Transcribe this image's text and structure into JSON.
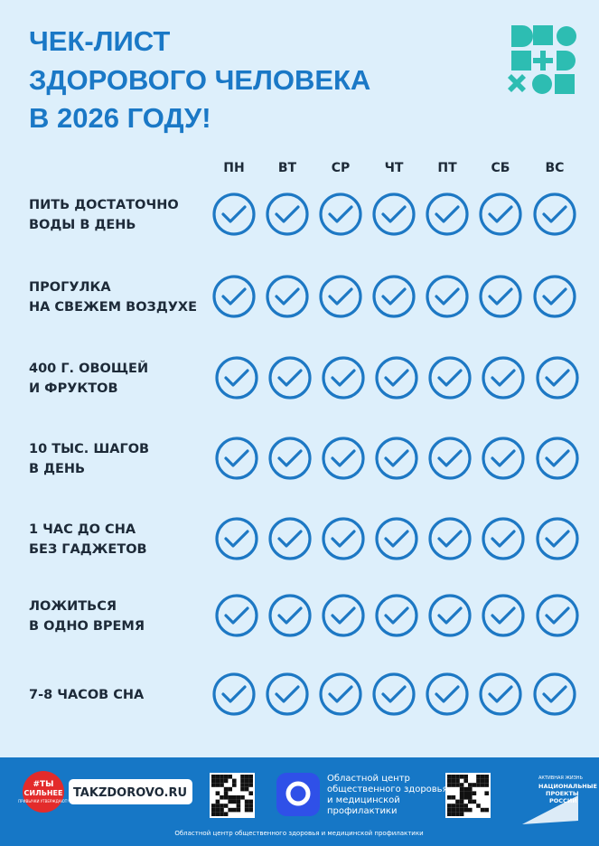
{
  "header": {
    "title_lines": [
      "ЧЕК-ЛИСТ",
      "ЗДОРОВОГО ЧЕЛОВЕКА",
      "В 2026 ГОДУ!"
    ]
  },
  "days": [
    "ПН",
    "ВТ",
    "СР",
    "ЧТ",
    "ПТ",
    "СБ",
    "ВС"
  ],
  "rows": [
    [
      "ПИТЬ ДОСТАТОЧНО",
      "ВОДЫ В ДЕНЬ"
    ],
    [
      "ПРОГУЛКА",
      "НА СВЕЖЕМ ВОЗДУХЕ"
    ],
    [
      "400 Г. ОВОЩЕЙ",
      "И ФРУКТОВ"
    ],
    [
      "10 ТЫС. ШАГОВ",
      "В ДЕНЬ"
    ],
    [
      "1 ЧАС ДО СНА",
      "БЕЗ ГАДЖЕТОВ"
    ],
    [
      "ЛОЖИТЬСЯ",
      "В ОДНО ВРЕМЯ"
    ],
    [
      "7-8 ЧАСОВ СНА"
    ]
  ],
  "footer": {
    "badge": [
      "#ТЫ",
      "СИЛЬНЕЕ"
    ],
    "badge_note": "ПРИВЫЧКИ УТВЕРЖДАЮТ!",
    "site": "TAKZDOROVO.RU",
    "org_lines": [
      "Областной центр",
      "общественного здоровья",
      "и медицинской",
      "профилактики"
    ],
    "np_small": "АКТИВНАЯ ЖИЗНЬ",
    "np_lines": [
      "НАЦИОНАЛЬНЫЕ",
      "ПРОЕКТЫ",
      "РОССИИ"
    ],
    "bottom": "Областной центр общественного здоровья и медицинской профилактики"
  }
}
